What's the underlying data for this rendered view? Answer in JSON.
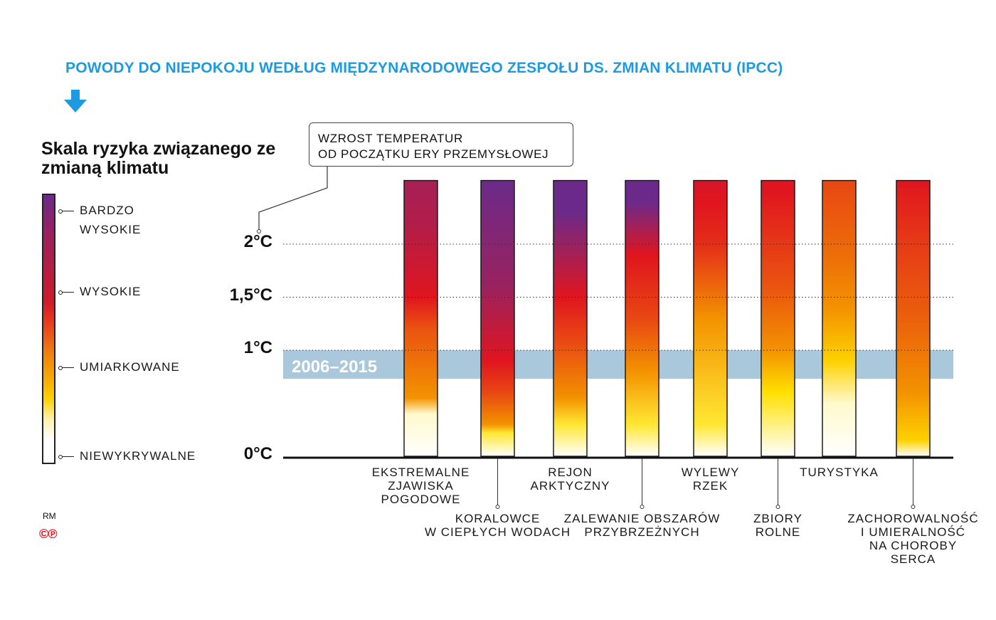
{
  "header": {
    "title": "POWODY DO NIEPOKOJU WEDŁUG MIĘDZYNARODOWEGO ZESPOŁU DS. ZMIAN KLIMATU (IPCC)",
    "subtitle": "Skala ryzyka związanego ze zmianą klimatu",
    "arrow_icon": "arrow-down-icon"
  },
  "legend": {
    "levels": [
      {
        "label_lines": [
          "BARDZO",
          "WYSOKIE"
        ]
      },
      {
        "label_lines": [
          "WYSOKIE"
        ]
      },
      {
        "label_lines": [
          "UMIARKOWANE"
        ]
      },
      {
        "label_lines": [
          "NIEWYKRYWALNE"
        ]
      }
    ]
  },
  "callout": {
    "line1": "WZROST TEMPERATUR",
    "line2": "OD POCZĄTKU ERY PRZEMYSŁOWEJ"
  },
  "credits": {
    "initials": "RM",
    "mark": "©℗"
  },
  "colors": {
    "title": "#1e9be0",
    "band": "#a9c8dc",
    "band_text": "#ffffff",
    "very_high": "#6b2a8a",
    "high": "#e0151f",
    "moderate": "#f39200",
    "low": "#ffe100",
    "undetectable": "#ffffff"
  },
  "chart_data": {
    "type": "bar",
    "ylim": [
      0,
      2.6
    ],
    "ticks": [
      {
        "value": 0,
        "label": "0°C"
      },
      {
        "value": 1,
        "label": "1°C"
      },
      {
        "value": 1.5,
        "label": "1,5°C"
      },
      {
        "value": 2,
        "label": "2°C"
      }
    ],
    "band": {
      "label": "2006–2015",
      "from": 0.73,
      "to": 1.0
    },
    "risk_scale": [
      "undetectable",
      "moderate",
      "high",
      "very_high"
    ],
    "categories": [
      {
        "lines": [
          "EKSTREMALNE",
          "ZJAWISKA",
          "POGODOWE"
        ],
        "pos": "high",
        "stops": [
          [
            0,
            0
          ],
          [
            0.4,
            0.1
          ],
          [
            0.55,
            1
          ],
          [
            1.2,
            1.5
          ],
          [
            1.5,
            2
          ],
          [
            2.2,
            2.4
          ],
          [
            2.6,
            2.5
          ]
        ]
      },
      {
        "lines": [
          "KORALOWCE",
          "W CIEPŁYCH WODACH"
        ],
        "pos": "low",
        "stops": [
          [
            0,
            0
          ],
          [
            0.22,
            0.4
          ],
          [
            0.3,
            1
          ],
          [
            0.6,
            1.6
          ],
          [
            0.9,
            2
          ],
          [
            1.6,
            2.6
          ],
          [
            2.6,
            3
          ]
        ]
      },
      {
        "lines": [
          "REJON",
          "ARKTYCZNY"
        ],
        "pos": "high",
        "stops": [
          [
            0,
            0
          ],
          [
            0.3,
            0.4
          ],
          [
            0.55,
            1
          ],
          [
            1.0,
            1.5
          ],
          [
            1.5,
            2
          ],
          [
            2.3,
            3
          ],
          [
            2.6,
            3
          ]
        ]
      },
      {
        "lines": [
          "ZALEWANIE OBSZARÓW",
          "PRZYBRZEŻNYCH"
        ],
        "pos": "low",
        "stops": [
          [
            0,
            0
          ],
          [
            0.3,
            0.4
          ],
          [
            0.8,
            1
          ],
          [
            1.3,
            1.6
          ],
          [
            1.9,
            2
          ],
          [
            2.4,
            3
          ],
          [
            2.6,
            3
          ]
        ]
      },
      {
        "lines": [
          "WYLEWY",
          "RZEK"
        ],
        "pos": "high",
        "stops": [
          [
            0,
            0
          ],
          [
            0.3,
            0.4
          ],
          [
            1.3,
            1
          ],
          [
            2.0,
            1.8
          ],
          [
            2.4,
            2
          ],
          [
            2.6,
            2.1
          ]
        ]
      },
      {
        "lines": [
          "ZBIORY",
          "ROLNE"
        ],
        "pos": "low",
        "stops": [
          [
            0,
            0
          ],
          [
            0.6,
            0.5
          ],
          [
            1.0,
            1
          ],
          [
            1.6,
            1.5
          ],
          [
            2.5,
            2
          ],
          [
            2.6,
            2
          ]
        ]
      },
      {
        "lines": [
          "TURYSTYKA"
        ],
        "pos": "high",
        "stops": [
          [
            0,
            0
          ],
          [
            0.5,
            0.1
          ],
          [
            0.9,
            0.6
          ],
          [
            1.4,
            1
          ],
          [
            1.9,
            1.3
          ],
          [
            2.6,
            1.6
          ]
        ]
      },
      {
        "lines": [
          "ZACHOROWALNOŚĆ",
          "I UMIERALNOŚĆ",
          "NA CHOROBY",
          "SERCA"
        ],
        "pos": "low",
        "stops": [
          [
            0,
            0
          ],
          [
            0.15,
            0.6
          ],
          [
            0.6,
            1
          ],
          [
            1.3,
            1.4
          ],
          [
            2.0,
            1.7
          ],
          [
            2.6,
            2
          ]
        ]
      }
    ]
  }
}
